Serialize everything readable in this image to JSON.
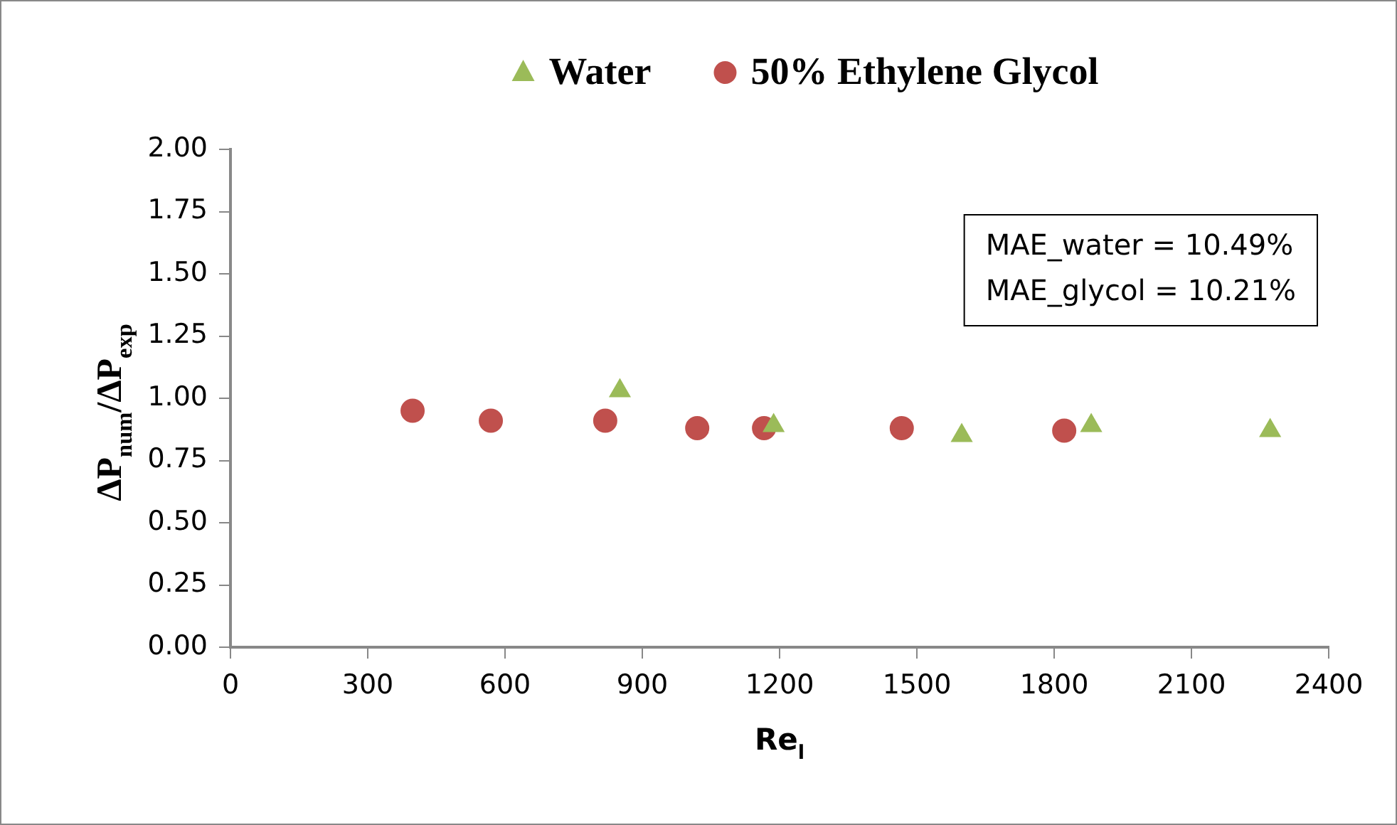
{
  "chart_data": {
    "type": "scatter",
    "xlabel": "Re$_{l}$",
    "ylabel": "ΔP$_{num}$/ΔP$_{exp}$",
    "xlim": [
      0,
      2400
    ],
    "xticks": [
      0,
      300,
      600,
      900,
      1200,
      1500,
      1800,
      2100,
      2400
    ],
    "ylim": [
      0,
      2
    ],
    "yticks": [
      {
        "value": 0,
        "label": "0.00"
      },
      {
        "value": 0.25,
        "label": "0.25"
      },
      {
        "value": 0.5,
        "label": "0.50"
      },
      {
        "value": 0.75,
        "label": "0.75"
      },
      {
        "value": 1,
        "label": "1.00"
      },
      {
        "value": 1.25,
        "label": "1.25"
      },
      {
        "value": 1.5,
        "label": "1.50"
      },
      {
        "value": 1.75,
        "label": "1.75"
      },
      {
        "value": 2,
        "label": "2.00"
      }
    ],
    "grid": false,
    "legend": "top",
    "annotations": [
      "MAE_water = 10.49%",
      "MAE_glycol = 10.21%"
    ],
    "series": [
      {
        "name": "Water",
        "color": "#9bbb59",
        "marker": "triangle",
        "x": [
          851,
          1187,
          1598,
          1881,
          2272
        ],
        "values": [
          1.03,
          0.89,
          0.85,
          0.89,
          0.87
        ]
      },
      {
        "name": "50% Ethylene Glycol",
        "color": "#c0504d",
        "marker": "circle",
        "x": [
          398,
          569,
          819,
          1020,
          1166,
          1467,
          1822
        ],
        "values": [
          0.95,
          0.91,
          0.91,
          0.88,
          0.88,
          0.88,
          0.87
        ]
      }
    ]
  }
}
